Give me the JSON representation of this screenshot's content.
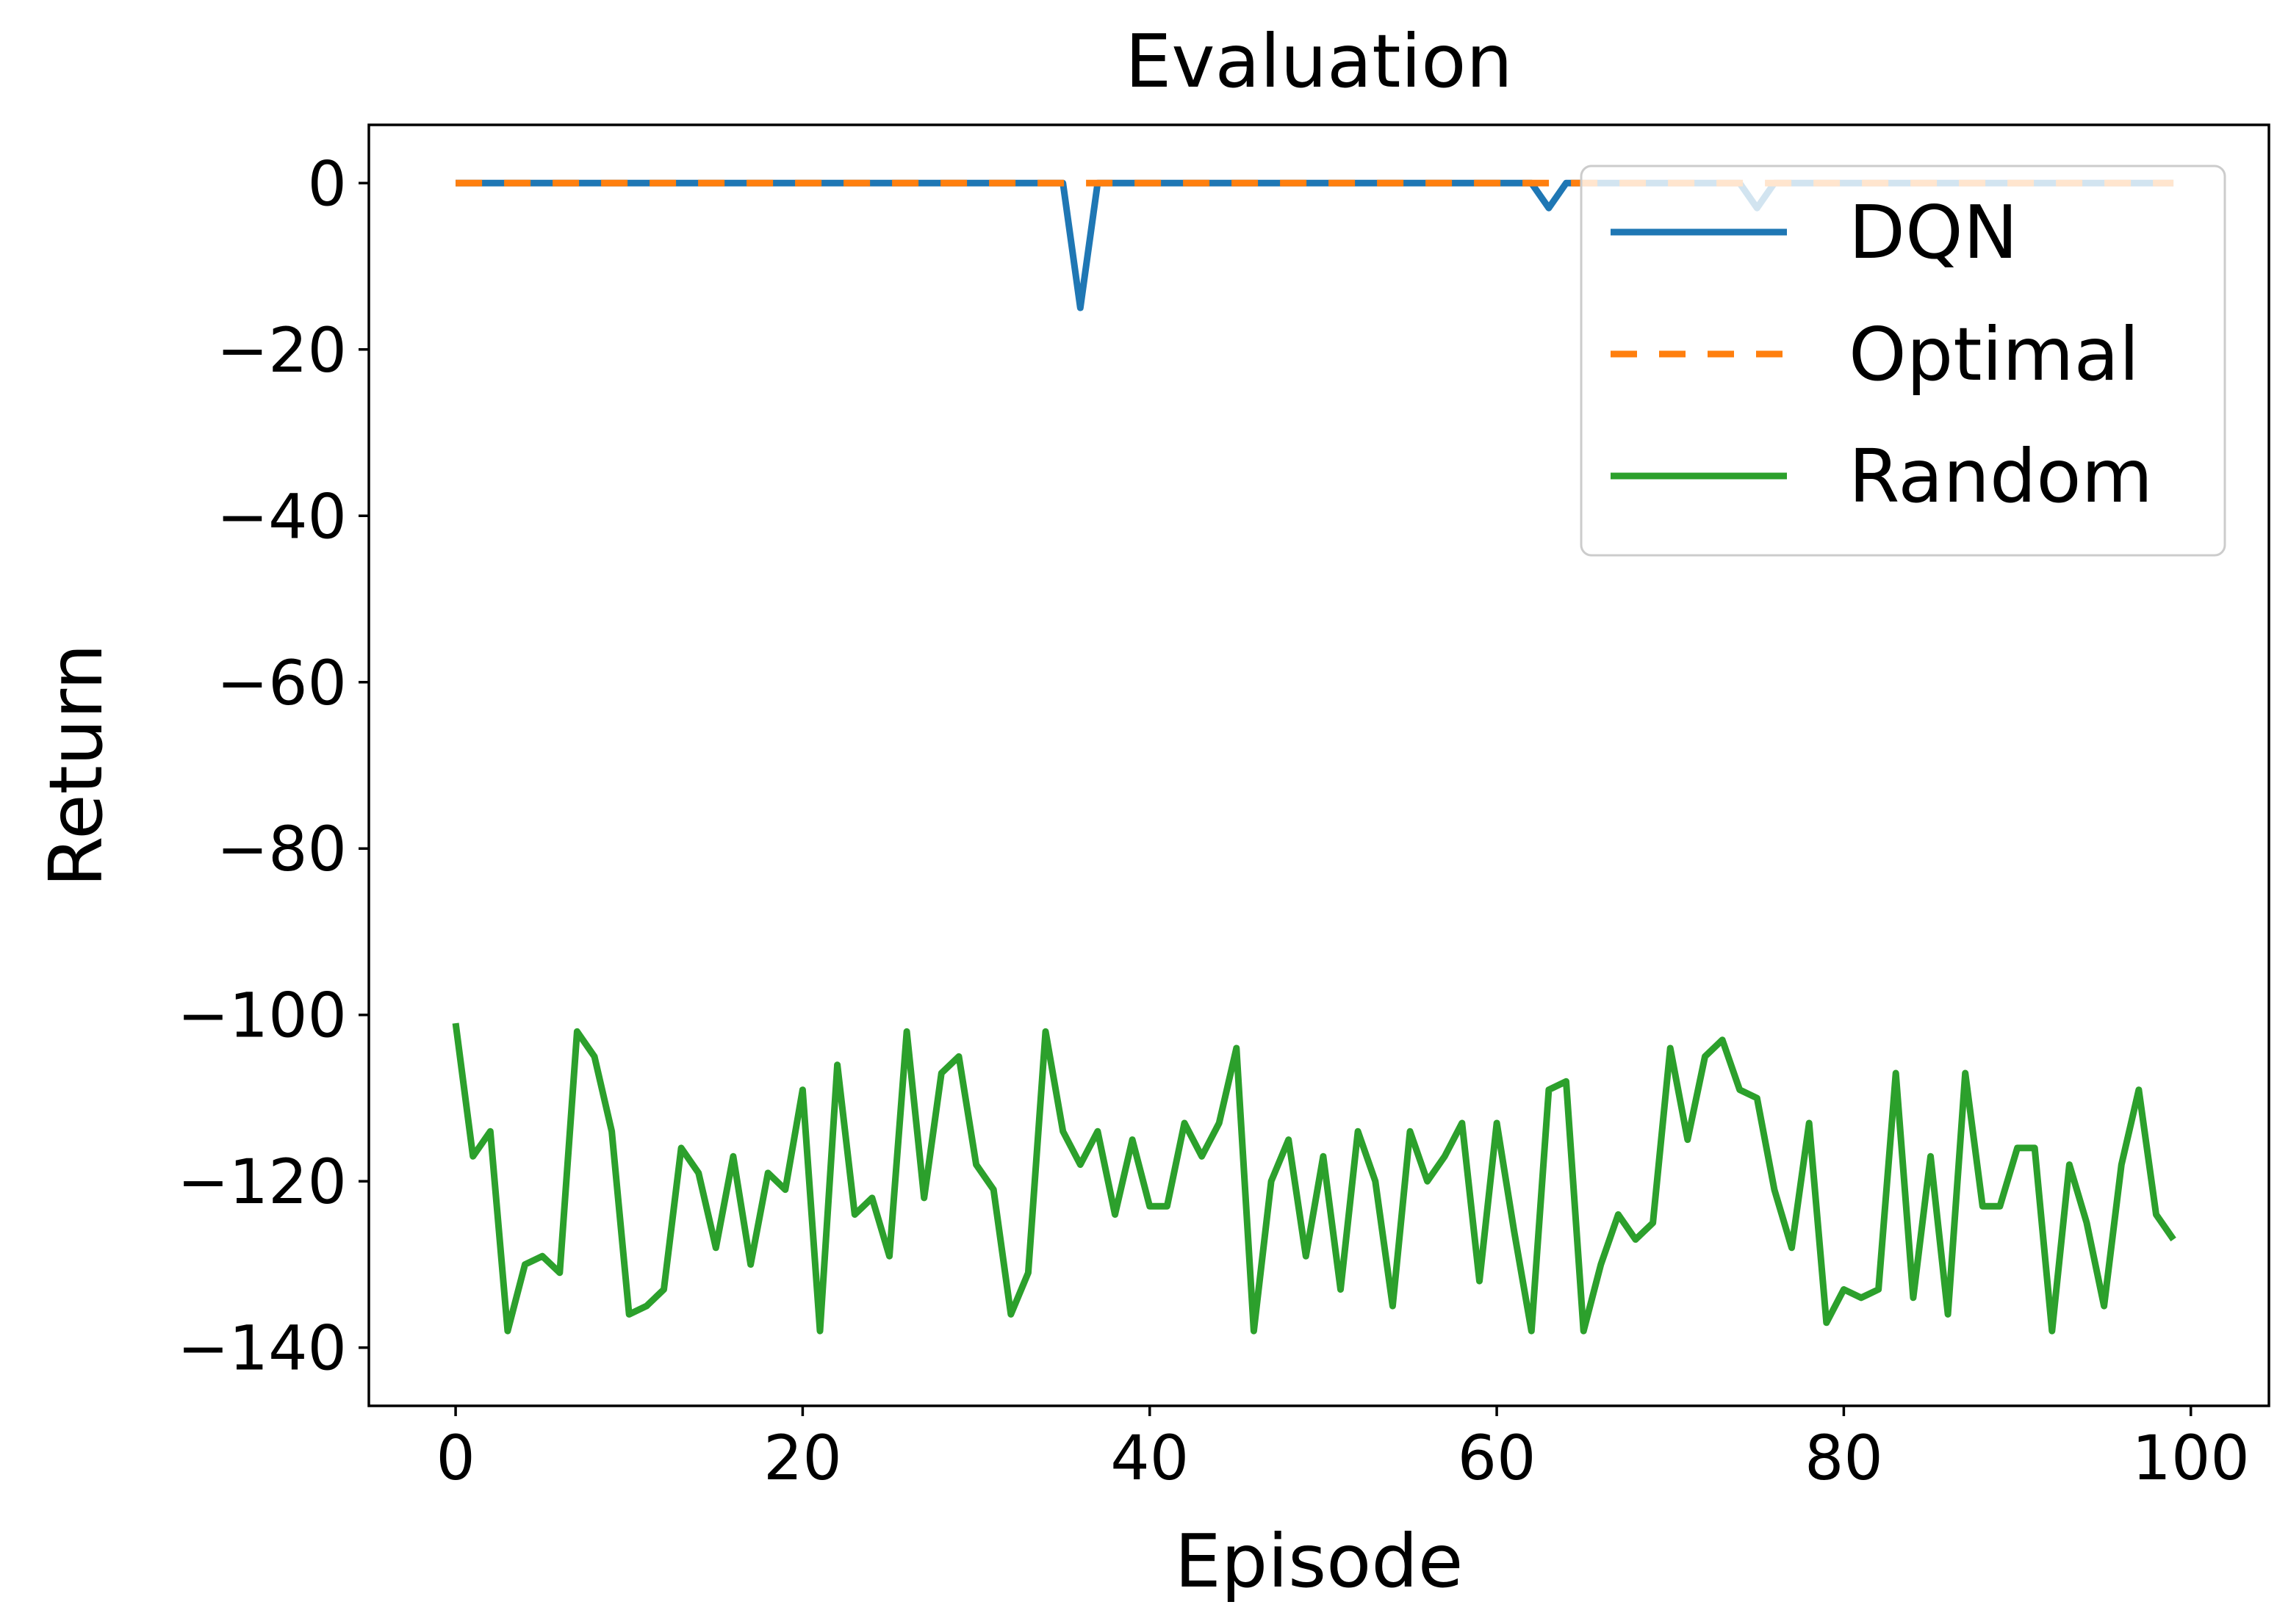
{
  "chart_data": {
    "type": "line",
    "title": "Evaluation",
    "xlabel": "Episode",
    "ylabel": "Return",
    "xlim": [
      -5,
      104.5
    ],
    "ylim": [
      -147,
      7
    ],
    "xticks": [
      0,
      20,
      40,
      60,
      80,
      100
    ],
    "xtick_labels": [
      "0",
      "20",
      "40",
      "60",
      "80",
      "100"
    ],
    "yticks": [
      0,
      -20,
      -40,
      -60,
      -80,
      -100,
      -120,
      -140
    ],
    "ytick_labels": [
      "0",
      "−20",
      "−40",
      "−60",
      "−80",
      "−100",
      "−120",
      "−140"
    ],
    "grid": false,
    "legend_position": "top-right",
    "series": [
      {
        "name": "DQN",
        "color": "#1f77b4",
        "style": "solid",
        "values": [
          0,
          0,
          0,
          0,
          0,
          0,
          0,
          0,
          0,
          0,
          0,
          0,
          0,
          0,
          0,
          0,
          0,
          0,
          0,
          0,
          0,
          0,
          0,
          0,
          0,
          0,
          0,
          0,
          0,
          0,
          0,
          0,
          0,
          0,
          0,
          0,
          -15,
          0,
          0,
          0,
          0,
          0,
          0,
          0,
          0,
          0,
          0,
          0,
          0,
          0,
          0,
          0,
          0,
          0,
          0,
          0,
          0,
          0,
          0,
          0,
          0,
          0,
          0,
          -3,
          0,
          0,
          0,
          0,
          0,
          0,
          0,
          0,
          0,
          0,
          0,
          -3,
          0,
          0,
          0,
          0,
          0,
          0,
          0,
          0,
          0,
          0,
          0,
          0,
          0,
          0,
          0,
          0,
          0,
          0,
          0,
          0,
          0,
          0,
          0,
          0
        ]
      },
      {
        "name": "Optimal",
        "color": "#ff7f0e",
        "style": "dashed",
        "values": [
          0,
          0,
          0,
          0,
          0,
          0,
          0,
          0,
          0,
          0,
          0,
          0,
          0,
          0,
          0,
          0,
          0,
          0,
          0,
          0,
          0,
          0,
          0,
          0,
          0,
          0,
          0,
          0,
          0,
          0,
          0,
          0,
          0,
          0,
          0,
          0,
          0,
          0,
          0,
          0,
          0,
          0,
          0,
          0,
          0,
          0,
          0,
          0,
          0,
          0,
          0,
          0,
          0,
          0,
          0,
          0,
          0,
          0,
          0,
          0,
          0,
          0,
          0,
          0,
          0,
          0,
          0,
          0,
          0,
          0,
          0,
          0,
          0,
          0,
          0,
          0,
          0,
          0,
          0,
          0,
          0,
          0,
          0,
          0,
          0,
          0,
          0,
          0,
          0,
          0,
          0,
          0,
          0,
          0,
          0,
          0,
          0,
          0,
          0,
          0
        ]
      },
      {
        "name": "Random",
        "color": "#2ca02c",
        "style": "solid",
        "values": [
          -101,
          -117,
          -114,
          -138,
          -130,
          -129,
          -131,
          -102,
          -105,
          -114,
          -136,
          -135,
          -133,
          -116,
          -119,
          -128,
          -117,
          -130,
          -119,
          -121,
          -109,
          -138,
          -106,
          -124,
          -122,
          -129,
          -102,
          -122,
          -107,
          -105,
          -118,
          -121,
          -136,
          -131,
          -102,
          -114,
          -118,
          -114,
          -124,
          -115,
          -123,
          -123,
          -113,
          -117,
          -113,
          -104,
          -138,
          -120,
          -115,
          -129,
          -117,
          -133,
          -114,
          -120,
          -135,
          -114,
          -120,
          -117,
          -113,
          -132,
          -113,
          -126,
          -138,
          -109,
          -108,
          -138,
          -130,
          -124,
          -127,
          -125,
          -104,
          -115,
          -105,
          -103,
          -109,
          -110,
          -121,
          -128,
          -113,
          -137,
          -133,
          -134,
          -133,
          -107,
          -134,
          -117,
          -136,
          -107,
          -123,
          -123,
          -116,
          -116,
          -138,
          -118,
          -125,
          -135,
          -118,
          -109,
          -124,
          -127
        ]
      }
    ]
  }
}
